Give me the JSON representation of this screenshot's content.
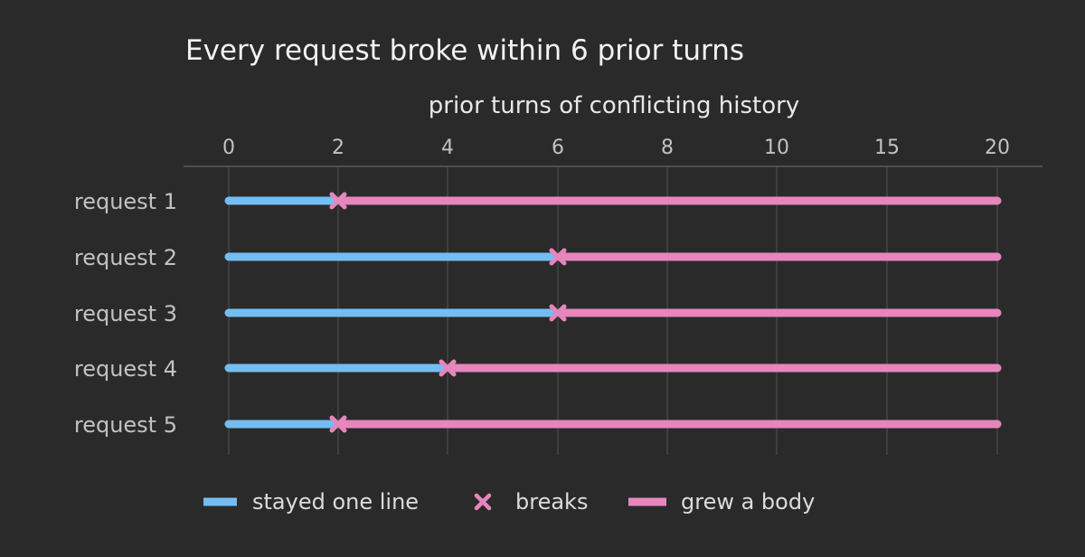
{
  "chart_data": {
    "type": "line",
    "title": "Every request broke within 6 prior turns",
    "xlabel": "prior turns of conflicting history",
    "ylabel": "",
    "x_ticks": [
      0,
      2,
      4,
      6,
      8,
      10,
      15,
      20
    ],
    "xlim": [
      0,
      20
    ],
    "grid": "vertical",
    "categories": [
      "request 1",
      "request 2",
      "request 3",
      "request 4",
      "request 5"
    ],
    "break_at": [
      2,
      6,
      6,
      4,
      2
    ],
    "series": [
      {
        "name": "stayed one line",
        "color": "#74bdf3",
        "marker": "line"
      },
      {
        "name": "breaks",
        "color": "#e686bc",
        "marker": "x"
      },
      {
        "name": "grew a body",
        "color": "#e686bc",
        "marker": "line"
      }
    ],
    "legend_position": "bottom",
    "colors": {
      "background": "#2b2a2b",
      "text": "#e8e8e8",
      "muted_text": "#c2c2c2",
      "grid": "#4a494a",
      "axis": "#5c5b5c",
      "stayed": "#74bdf3",
      "grew": "#e686bc"
    }
  }
}
